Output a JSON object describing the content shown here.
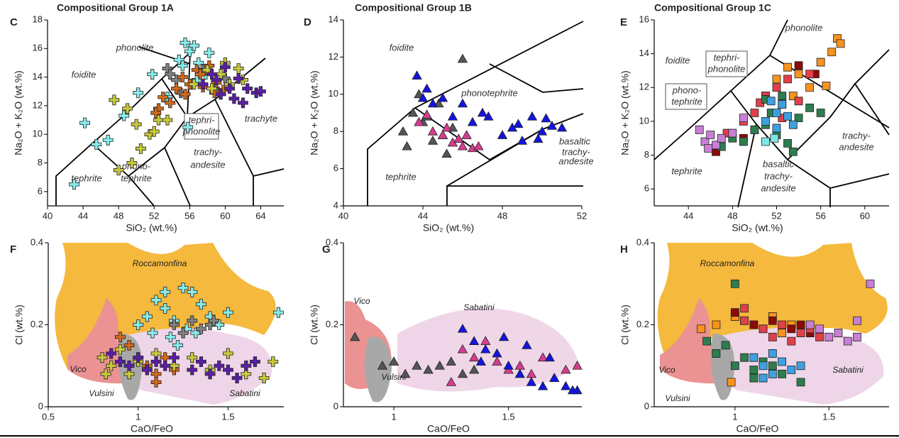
{
  "chart_data": [
    {
      "type": "scatter",
      "panel": "C",
      "title": "Compositional Group 1A",
      "xlabel": "SiO₂ (wt.%)",
      "ylabel": "Na₂O + K₂O (wt.%)",
      "marker": "cross",
      "xlim": [
        40,
        66.6
      ],
      "ylim": [
        5,
        18
      ],
      "xticks": [
        40,
        44,
        48,
        52,
        56,
        60,
        64
      ],
      "yticks": [
        6,
        8,
        10,
        12,
        14,
        16,
        18
      ],
      "annotations": [
        "phonolite",
        "foidite",
        "tephri-",
        "phonolite",
        "trachyte",
        "phono-",
        "tephrite",
        "trachy-",
        "andesite",
        "tephrite"
      ],
      "series": [
        {
          "color": "#86ecec",
          "x": [
            43.0,
            45.5,
            44.2,
            46.8,
            48.6,
            50.2,
            51.8,
            53.5,
            54.8,
            55.5,
            56.0,
            56.5,
            57.0,
            57.5,
            58.2,
            55.2,
            56.8,
            57.8,
            55.8
          ],
          "y": [
            6.5,
            9.3,
            10.8,
            9.6,
            11.3,
            12.9,
            14.2,
            12.6,
            15.2,
            16.4,
            15.8,
            16.2,
            15.0,
            14.5,
            15.7,
            14.8,
            13.8,
            14.2,
            10.5
          ]
        },
        {
          "color": "#808080",
          "x": [
            53.5,
            54.5,
            55,
            56.2,
            57.5,
            58.8,
            60,
            53.8
          ],
          "y": [
            14.6,
            13.8,
            12.9,
            13.5,
            14.5,
            13.2,
            13.9,
            14.2
          ]
        },
        {
          "color": "#d2691e",
          "x": [
            52.5,
            53.8,
            54.5,
            55.2,
            56,
            56.8,
            57.5,
            58.2,
            59,
            59.8,
            53,
            52.2,
            55.5,
            57.2,
            58.8
          ],
          "y": [
            11.8,
            12.2,
            13.2,
            14,
            13.5,
            14.5,
            13.3,
            14.8,
            13.6,
            13.1,
            12.6,
            11.5,
            12.8,
            14.2,
            12.9
          ]
        },
        {
          "color": "#c8c83c",
          "x": [
            48,
            49.5,
            50.5,
            51.5,
            52.5,
            49,
            47.5,
            50,
            52,
            53.5,
            58.5,
            59.5,
            60.5,
            61.5,
            62,
            60,
            58,
            56.5
          ],
          "y": [
            7.5,
            8,
            9,
            10,
            11,
            11.8,
            12.4,
            10.7,
            10.2,
            11,
            13.2,
            14.2,
            13.5,
            14.6,
            13.8,
            15,
            14.5,
            13.5
          ]
        },
        {
          "color": "#5b1fa6",
          "x": [
            57.5,
            58.5,
            59.5,
            60.5,
            61.5,
            62.5,
            63.5,
            60,
            61,
            62,
            64,
            59
          ],
          "y": [
            13.5,
            14.2,
            12.8,
            13.2,
            13.9,
            13.2,
            12.9,
            14.7,
            12.5,
            12.2,
            13.0,
            13.8
          ]
        }
      ]
    },
    {
      "type": "scatter",
      "panel": "D",
      "title": "Compositional Group 1B",
      "xlabel": "SiO₂ (wt.%)",
      "ylabel": "Na₂O + K₂O (wt.%)",
      "marker": "triangle",
      "xlim": [
        40,
        52
      ],
      "ylim": [
        4,
        14
      ],
      "xticks": [
        40,
        44,
        48,
        52
      ],
      "yticks": [
        4,
        6,
        8,
        10,
        12,
        14
      ],
      "annotations": [
        "foidite",
        "phonotephrite",
        "tephrite",
        "basaltic",
        "trachy-",
        "andesite"
      ],
      "series": [
        {
          "color": "#555555",
          "x": [
            43,
            43.5,
            44,
            44.5,
            45,
            43.8,
            44.8,
            45.2,
            43.2,
            46,
            44.2,
            45.5
          ],
          "y": [
            8,
            9,
            8.5,
            7.5,
            7.8,
            10,
            9.5,
            6.8,
            7.2,
            11.9,
            8.8,
            8.2
          ]
        },
        {
          "color": "#d63d8f",
          "x": [
            43.8,
            44.5,
            45,
            45.5,
            46,
            46.5,
            46.8,
            45.2,
            46.2,
            44.2,
            45.8
          ],
          "y": [
            8.5,
            8,
            7.8,
            7.4,
            7.2,
            7.1,
            7.2,
            8.2,
            7.8,
            8.9,
            7.6
          ]
        },
        {
          "color": "#1414e0",
          "x": [
            43.7,
            44,
            44.5,
            45,
            45.5,
            46,
            46.5,
            47,
            47.3,
            48,
            48.5,
            49,
            49.5,
            50,
            50.5,
            51,
            49.8,
            50.2,
            48.8,
            44.2
          ],
          "y": [
            11,
            9.8,
            9.5,
            9.8,
            8.8,
            9.5,
            8.5,
            9,
            8.8,
            7.8,
            8.2,
            7.5,
            8.8,
            8,
            8.3,
            8.2,
            7.6,
            8.7,
            8.4,
            10.3
          ]
        }
      ]
    },
    {
      "type": "scatter",
      "panel": "E",
      "title": "Compositional Group 1C",
      "xlabel": "SiO₂ (wt.%)",
      "ylabel": "Na₂O + K₂O (wt.%)",
      "marker": "square",
      "xlim": [
        40.9,
        62.2
      ],
      "ylim": [
        5,
        16
      ],
      "xticks": [
        44,
        48,
        52,
        56,
        60
      ],
      "yticks": [
        6,
        8,
        10,
        12,
        14,
        16
      ],
      "annotations": [
        "phonolite",
        "foidite",
        "tephri-",
        "phonolite",
        "phono-",
        "tephrite",
        "trachy-",
        "andesite",
        "tephrite",
        "basaltic",
        "trachy-",
        "andesite"
      ],
      "series": [
        {
          "color": "#f7931e",
          "x": [
            51,
            52,
            53,
            54,
            55,
            56,
            57.5,
            57,
            56.5,
            53.5,
            57.8
          ],
          "y": [
            11.5,
            12.5,
            13.2,
            12.8,
            12,
            13.5,
            14.9,
            14.1,
            12.1,
            11.5,
            14.6
          ]
        },
        {
          "color": "#8b0a0a",
          "x": [
            49,
            50,
            52.5,
            54,
            55.5,
            46.5
          ],
          "y": [
            9,
            9.5,
            11,
            13.3,
            12.8,
            8.2
          ]
        },
        {
          "color": "#e0404a",
          "x": [
            47.5,
            49,
            50,
            51,
            52,
            53,
            54,
            55,
            50.5,
            52.5
          ],
          "y": [
            9.3,
            10,
            10.5,
            11.5,
            12,
            12.5,
            11.2,
            12.8,
            11.1,
            10.2
          ]
        },
        {
          "color": "#2e7d4f",
          "x": [
            47,
            48,
            49,
            50,
            51,
            51.5,
            52,
            53,
            54,
            55,
            56,
            53.5,
            52.5,
            51
          ],
          "y": [
            8.5,
            9,
            8.8,
            9.5,
            9.8,
            10.5,
            9.2,
            8.7,
            10.2,
            10.8,
            10.5,
            8.2,
            11.5,
            11.3
          ]
        },
        {
          "color": "#3fa0e0",
          "x": [
            51,
            52,
            52.5,
            53,
            53.5,
            52,
            51.5
          ],
          "y": [
            10,
            10.5,
            11,
            10.3,
            9.8,
            9.6,
            11.2
          ]
        },
        {
          "color": "#c77fd6",
          "x": [
            45,
            45.5,
            46,
            46.5,
            47,
            48,
            45.8,
            49
          ],
          "y": [
            9.5,
            8.8,
            9.2,
            8.6,
            9,
            9.3,
            8.4,
            10.2
          ]
        },
        {
          "color": "#7fe6e6",
          "x": [
            51,
            51.8
          ],
          "y": [
            8.8,
            9
          ]
        }
      ]
    },
    {
      "type": "scatter",
      "panel": "F",
      "xlabel": "CaO/FeO",
      "ylabel": "Cl (wt.%)",
      "marker": "cross",
      "xlim": [
        0.5,
        1.81
      ],
      "ylim": [
        0,
        0.4
      ],
      "xticks": [
        0.5,
        1,
        1.5
      ],
      "yticks": [
        0,
        0.2,
        0.4
      ],
      "annotations": [
        "Roccamonfina",
        "Vico",
        "Vulsini",
        "Sabatini"
      ],
      "series": [
        {
          "color": "#86ecec",
          "x": [
            1.0,
            1.05,
            1.1,
            1.15,
            1.2,
            1.25,
            1.3,
            1.35,
            1.4,
            1.45,
            1.5,
            1.27,
            1.32,
            1.18,
            1.08,
            1.78,
            1.15,
            1.22
          ],
          "y": [
            0.2,
            0.22,
            0.26,
            0.24,
            0.21,
            0.29,
            0.28,
            0.25,
            0.22,
            0.2,
            0.23,
            0.19,
            0.18,
            0.17,
            0.18,
            0.23,
            0.28,
            0.15
          ]
        },
        {
          "color": "#808080",
          "x": [
            1.2,
            1.3,
            1.35,
            1.4,
            1.42,
            1.25
          ],
          "y": [
            0.2,
            0.21,
            0.19,
            0.2,
            0.21,
            0.18
          ]
        },
        {
          "color": "#d2691e",
          "x": [
            0.95,
            1.05,
            1.1,
            1.15,
            1.2,
            0.9,
            1.0,
            1.1
          ],
          "y": [
            0.15,
            0.1,
            0.08,
            0.12,
            0.09,
            0.17,
            0.12,
            0.06
          ]
        },
        {
          "color": "#c8c83c",
          "x": [
            0.8,
            0.85,
            0.9,
            0.95,
            1.0,
            1.05,
            1.1,
            1.2,
            1.3,
            1.4,
            1.5,
            1.6,
            1.7,
            1.75,
            0.82
          ],
          "y": [
            0.12,
            0.1,
            0.14,
            0.08,
            0.11,
            0.09,
            0.13,
            0.1,
            0.12,
            0.09,
            0.13,
            0.08,
            0.07,
            0.11,
            0.08
          ]
        },
        {
          "color": "#5b1fa6",
          "x": [
            0.85,
            0.9,
            0.95,
            1.0,
            1.05,
            1.1,
            1.15,
            1.2,
            1.3,
            1.35,
            1.4,
            1.45,
            1.5,
            1.55,
            1.6,
            1.65
          ],
          "y": [
            0.13,
            0.11,
            0.1,
            0.12,
            0.09,
            0.11,
            0.1,
            0.12,
            0.09,
            0.11,
            0.08,
            0.1,
            0.09,
            0.07,
            0.1,
            0.11
          ]
        }
      ]
    },
    {
      "type": "scatter",
      "panel": "G",
      "xlabel": "CaO/FeO",
      "ylabel": "Cl (wt.%)",
      "marker": "triangle",
      "xlim": [
        0.78,
        1.82
      ],
      "ylim": [
        0,
        0.4
      ],
      "xticks": [
        1,
        1.5
      ],
      "yticks": [
        0,
        0.2,
        0.4
      ],
      "annotations": [
        "Vico",
        "Sabatini",
        "Vulsini"
      ],
      "series": [
        {
          "color": "#555555",
          "x": [
            0.83,
            0.95,
            1.0,
            1.05,
            1.1,
            1.15,
            1.2,
            1.25,
            1.3,
            1.35
          ],
          "y": [
            0.17,
            0.1,
            0.11,
            0.08,
            0.1,
            0.09,
            0.1,
            0.11,
            0.08,
            0.09
          ]
        },
        {
          "color": "#d63d8f",
          "x": [
            1.3,
            1.35,
            1.4,
            1.45,
            1.5,
            1.55,
            1.6,
            1.65,
            1.7,
            1.75,
            1.8,
            1.25
          ],
          "y": [
            0.14,
            0.12,
            0.16,
            0.11,
            0.09,
            0.1,
            0.08,
            0.12,
            0.07,
            0.09,
            0.1,
            0.06
          ]
        },
        {
          "color": "#1414e0",
          "x": [
            1.3,
            1.35,
            1.4,
            1.45,
            1.5,
            1.55,
            1.6,
            1.65,
            1.7,
            1.75,
            1.8,
            1.78,
            1.38,
            1.48,
            1.58,
            1.68
          ],
          "y": [
            0.19,
            0.16,
            0.14,
            0.13,
            0.1,
            0.08,
            0.06,
            0.05,
            0.07,
            0.05,
            0.04,
            0.04,
            0.11,
            0.17,
            0.15,
            0.12
          ]
        }
      ]
    },
    {
      "type": "scatter",
      "panel": "H",
      "xlabel": "CaO/FeO",
      "ylabel": "Cl (wt.%)",
      "marker": "square",
      "xlim": [
        0.57,
        1.82
      ],
      "ylim": [
        0,
        0.4
      ],
      "xticks": [
        1,
        1.5
      ],
      "yticks": [
        0,
        0.2,
        0.4
      ],
      "annotations": [
        "Roccamonfina",
        "Vico",
        "Vulsini",
        "Sabatini"
      ],
      "series": [
        {
          "color": "#f7931e",
          "x": [
            0.9,
            1.0,
            1.05,
            1.1,
            1.15,
            1.2,
            1.25,
            1.3,
            0.82,
            0.98
          ],
          "y": [
            0.2,
            0.22,
            0.21,
            0.2,
            0.19,
            0.22,
            0.18,
            0.2,
            0.19,
            0.06
          ]
        },
        {
          "color": "#8b0a0a",
          "x": [
            1.0,
            1.1,
            1.2,
            1.3,
            1.35,
            1.4
          ],
          "y": [
            0.23,
            0.2,
            0.21,
            0.19,
            0.2,
            0.18
          ]
        },
        {
          "color": "#e0404a",
          "x": [
            1.05,
            1.15,
            1.25,
            1.35,
            1.4,
            1.45,
            1.2,
            1.3,
            1.05
          ],
          "y": [
            0.21,
            0.19,
            0.2,
            0.18,
            0.19,
            0.17,
            0.17,
            0.16,
            0.24
          ]
        },
        {
          "color": "#2e7d4f",
          "x": [
            0.85,
            0.9,
            0.95,
            1.0,
            1.05,
            1.1,
            1.15,
            1.2,
            1.25,
            1.35,
            1.0,
            1.1
          ],
          "y": [
            0.16,
            0.13,
            0.15,
            0.1,
            0.12,
            0.09,
            0.11,
            0.1,
            0.08,
            0.06,
            0.3,
            0.07
          ]
        },
        {
          "color": "#3fa0e0",
          "x": [
            1.1,
            1.15,
            1.2,
            1.25,
            1.3,
            1.35,
            1.2,
            1.15
          ],
          "y": [
            0.12,
            0.1,
            0.13,
            0.11,
            0.09,
            0.1,
            0.08,
            0.07
          ]
        },
        {
          "color": "#c77fd6",
          "x": [
            1.4,
            1.45,
            1.5,
            1.55,
            1.6,
            1.65,
            1.72,
            1.65
          ],
          "y": [
            0.2,
            0.19,
            0.17,
            0.18,
            0.16,
            0.17,
            0.3,
            0.21
          ]
        }
      ]
    }
  ]
}
